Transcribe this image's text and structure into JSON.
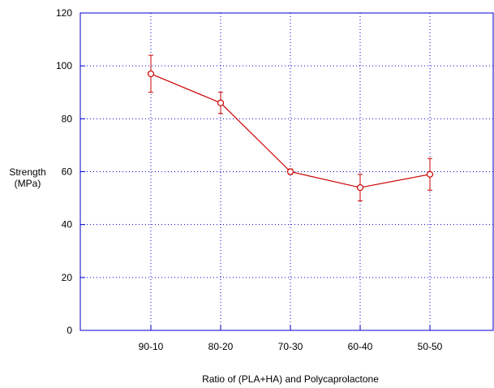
{
  "chart_data": {
    "type": "line",
    "title": "",
    "xlabel": "Ratio of (PLA+HA) and Polycaprolactone",
    "ylabel": [
      "Strength",
      "(MPa)"
    ],
    "categories": [
      "90-10",
      "80-20",
      "70-30",
      "60-40",
      "50-50"
    ],
    "ylim": [
      0,
      120
    ],
    "yticks": [
      0,
      20,
      40,
      60,
      80,
      100,
      120
    ],
    "grid": true,
    "series": [
      {
        "values": [
          97,
          86,
          60,
          54,
          59
        ],
        "error_low": [
          90,
          82,
          59,
          49,
          53
        ],
        "error_high": [
          104,
          90,
          61,
          59,
          65
        ]
      }
    ],
    "colors": {
      "axis": "#0000cc",
      "grid": "#0000cc",
      "series": "#cc0000"
    }
  }
}
